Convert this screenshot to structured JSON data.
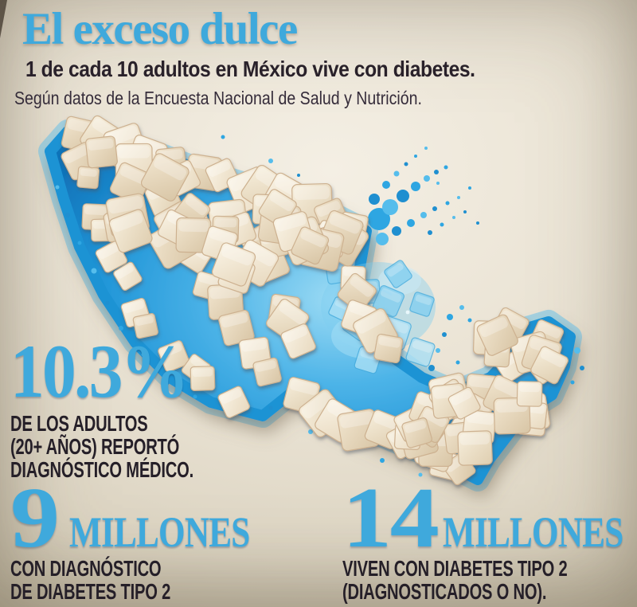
{
  "header": {
    "title": "El exceso dulce",
    "subtitle": "1 de cada 10 adultos en México vive con diabetes.",
    "source": "Según datos de la Encuesta Nacional de Salud y Nutrición."
  },
  "stats": {
    "percentage": {
      "value": "10.3%",
      "lines": [
        "DE LOS ADULTOS",
        "(20+ AÑOS) REPORTÓ",
        "DIAGNÓSTICO MÉDICO."
      ]
    },
    "diagnosed": {
      "number": "9",
      "unit": "MILLONES",
      "lines": [
        "CON DIAGNÓSTICO",
        "DE DIABETES TIPO 2"
      ]
    },
    "total": {
      "number": "14",
      "unit": "MILLONES",
      "lines": [
        "VIVEN CON DIABETES TIPO 2",
        "(DIAGNOSTICADOS O NO)."
      ]
    }
  },
  "illustration": {
    "name": "mexico-map-of-sugar-cubes-on-blue-liquid-splash"
  },
  "theme": {
    "accent": "#3fa9dc",
    "dark": "#29212a",
    "bg": "#e7dfcf",
    "splash": "#2196d8",
    "sugar": "#eee1c9"
  },
  "chart_data": {
    "type": "table",
    "title": "El exceso dulce",
    "subtitle": "1 de cada 10 adultos en México vive con diabetes.",
    "source": "Según datos de la Encuesta Nacional de Salud y Nutrición.",
    "rows": [
      {
        "value": "10.3%",
        "label": "De los adultos (20+ años) reportó diagnóstico médico"
      },
      {
        "value": "9 millones",
        "label": "Con diagnóstico de diabetes tipo 2"
      },
      {
        "value": "14 millones",
        "label": "Viven con diabetes tipo 2 (diagnosticados o no)"
      }
    ]
  }
}
